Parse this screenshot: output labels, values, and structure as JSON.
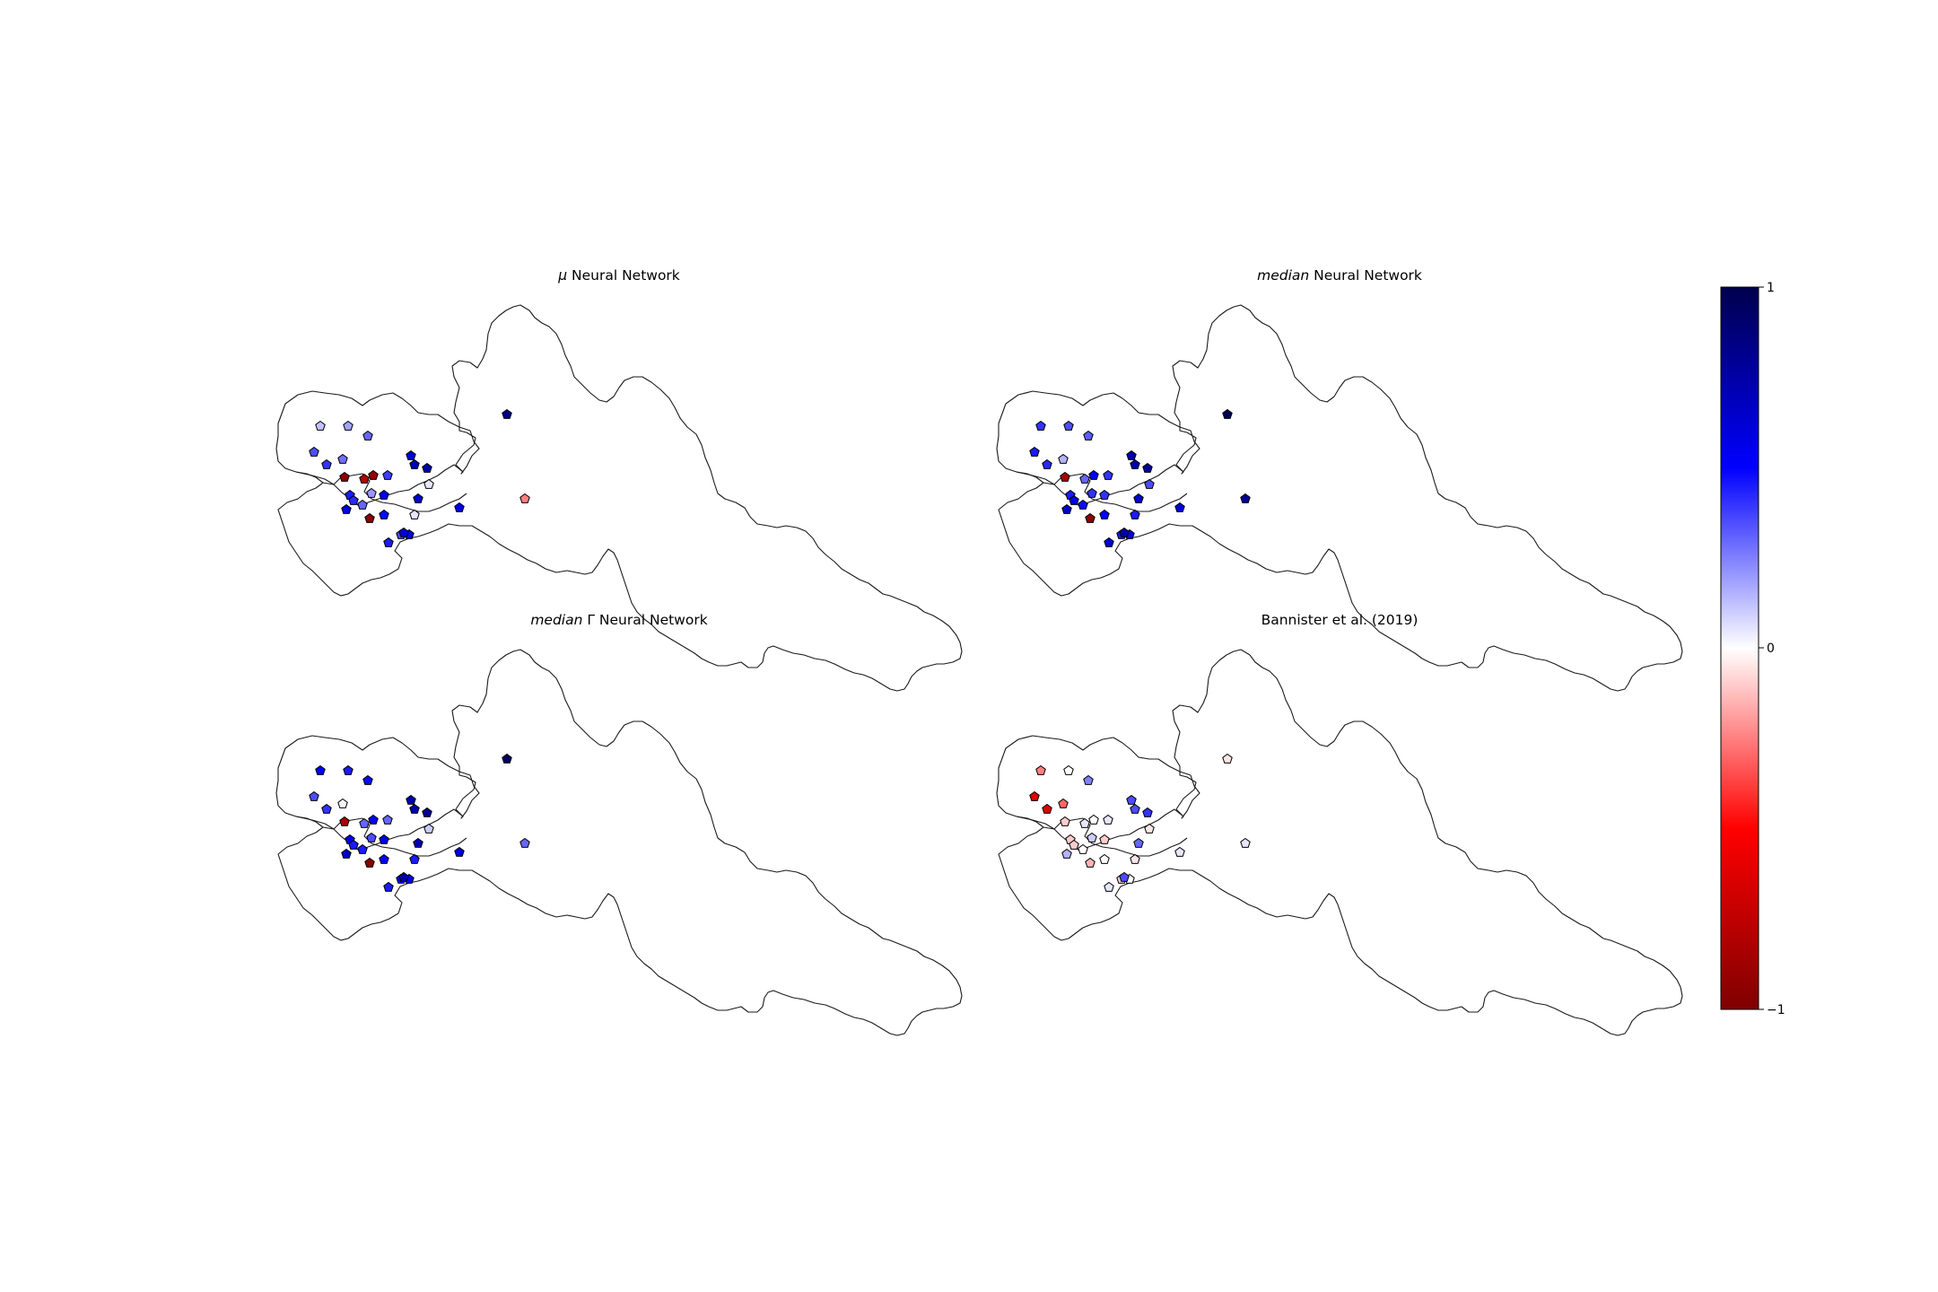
{
  "figure": {
    "panels": [
      {
        "id": "mu",
        "title_prefix": "μ",
        "title_suffix": " Neural Network",
        "station_values": [
          0.12,
          0.18,
          0.3,
          0.35,
          0.4,
          0.28,
          -0.95,
          -0.9,
          -0.8,
          0.38,
          0.62,
          0.7,
          0.75,
          0.05,
          0.45,
          0.42,
          0.3,
          0.2,
          0.5,
          -0.95,
          0.48,
          0.05,
          0.6,
          0.55,
          0.58,
          0.45,
          0.85,
          -0.25,
          0.35,
          0.55,
          0.6
        ]
      },
      {
        "id": "median",
        "title_prefix": "median",
        "title_suffix": " Neural Network",
        "station_values": [
          0.4,
          0.35,
          0.32,
          0.45,
          0.42,
          0.15,
          -0.85,
          0.5,
          0.3,
          0.4,
          0.75,
          0.72,
          0.78,
          0.35,
          0.45,
          0.55,
          0.48,
          0.4,
          0.4,
          -0.95,
          0.5,
          0.45,
          0.62,
          0.6,
          0.65,
          0.6,
          0.98,
          0.8,
          0.45,
          0.55,
          0.75
        ]
      },
      {
        "id": "median_gamma",
        "title_prefix": "median",
        "title_suffix": " Γ Neural Network",
        "station_values": [
          0.5,
          0.45,
          0.48,
          0.35,
          0.4,
          0.02,
          -0.85,
          0.5,
          0.3,
          0.3,
          0.72,
          0.7,
          0.8,
          0.1,
          0.55,
          0.45,
          0.45,
          0.35,
          0.55,
          -0.95,
          0.5,
          0.45,
          0.7,
          0.6,
          0.65,
          0.45,
          0.95,
          0.3,
          0.5,
          0.5,
          0.75
        ]
      },
      {
        "id": "bannister",
        "title_prefix": "",
        "title_suffix": "Bannister et al. (2019)",
        "station_values": [
          -0.25,
          0.0,
          0.25,
          -0.6,
          -0.6,
          -0.3,
          -0.1,
          0.0,
          0.05,
          0.05,
          0.35,
          0.35,
          0.4,
          -0.05,
          -0.1,
          -0.1,
          0.0,
          0.1,
          -0.1,
          -0.15,
          0.0,
          -0.05,
          0.3,
          0.05,
          0.15,
          0.05,
          -0.05,
          0.05,
          -0.1,
          0.0,
          0.35
        ]
      }
    ],
    "colorbar": {
      "colormap": "seismic_r",
      "min": -1,
      "max": 1,
      "ticks": [
        "1",
        "0",
        "−1"
      ]
    },
    "colors": {
      "dark_red": "#7f0000",
      "red": "#ff0000",
      "white": "#ffffff",
      "blue": "#0000ff",
      "dark_blue": "#00004c"
    }
  }
}
